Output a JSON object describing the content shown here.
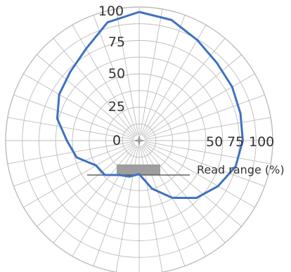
{
  "chart_data": {
    "type": "polar-line",
    "radial_ticks": [
      "0",
      "25",
      "50",
      "75",
      "100"
    ],
    "side_ticks": [
      "50",
      "75",
      "100"
    ],
    "radial_axis_label": "Read range (%)",
    "rlim": [
      0,
      100
    ],
    "grid": true,
    "angle_divisions": 36,
    "angles_deg": [
      0,
      15,
      30,
      45,
      60,
      75,
      90,
      105,
      120,
      135,
      150,
      165,
      180,
      195,
      210,
      225,
      240,
      255,
      270,
      285,
      300,
      315,
      330,
      345,
      360
    ],
    "values": [
      100,
      97,
      90,
      85,
      83,
      81,
      80,
      77,
      70,
      62,
      50,
      37,
      24,
      27,
      29,
      36,
      37,
      49,
      55,
      65,
      71,
      75,
      82,
      95,
      100
    ],
    "colors": {
      "line": "#3f71c1",
      "grid": "#bdbdbd",
      "device": "#9e9e9e",
      "axis_line": "#444444",
      "text": "#333333"
    }
  }
}
